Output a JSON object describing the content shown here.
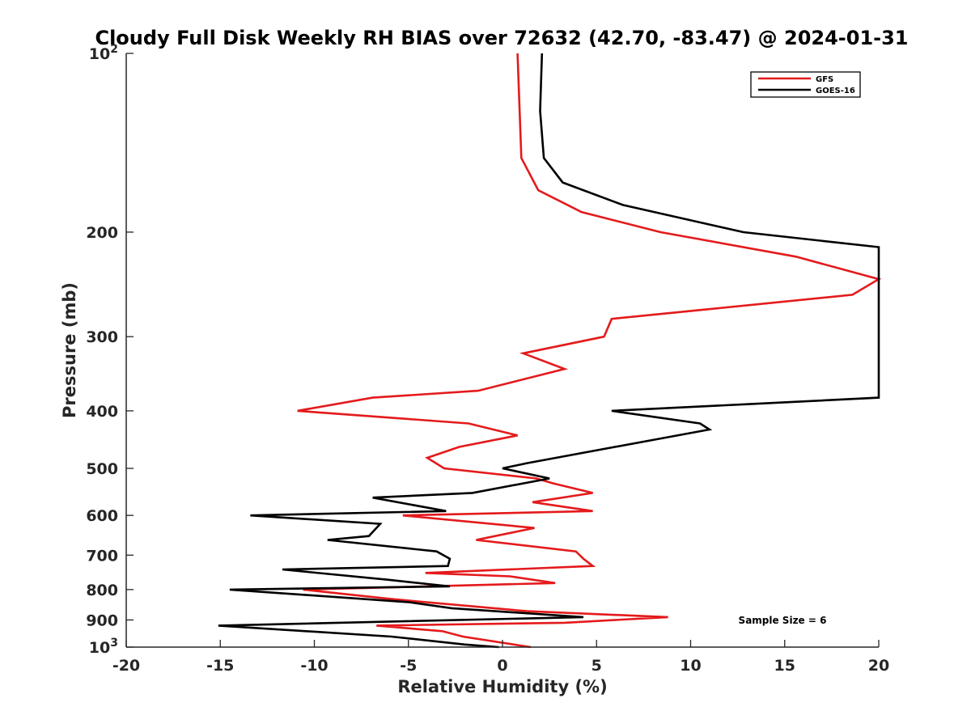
{
  "chart_data": {
    "type": "line",
    "title": "Cloudy Full Disk Weekly RH BIAS over 72632 (42.70, -83.47) @ 2024-01-31",
    "xlabel": "Relative Humidity (%)",
    "ylabel": "Pressure (mb)",
    "xlim": [
      -20,
      20
    ],
    "ylim": [
      100,
      1000
    ],
    "y_scale": "log",
    "y_reversed": true,
    "grid": false,
    "legend_position": "top-right",
    "x_ticks": [
      -20,
      -15,
      -10,
      -5,
      0,
      5,
      10,
      15,
      20
    ],
    "x_tick_labels": [
      "-20",
      "-15",
      "-10",
      "-5",
      "0",
      "5",
      "10",
      "15",
      "20"
    ],
    "y_ticks": [
      100,
      200,
      300,
      400,
      500,
      600,
      700,
      800,
      900,
      1000
    ],
    "y_tick_labels": [
      {
        "base": "10",
        "exp": "2"
      },
      {
        "text": "200"
      },
      {
        "text": "300"
      },
      {
        "text": "400"
      },
      {
        "text": "500"
      },
      {
        "text": "600"
      },
      {
        "text": "700"
      },
      {
        "text": "800"
      },
      {
        "text": "900"
      },
      {
        "base": "10",
        "exp": "3"
      }
    ],
    "annotation": "Sample Size = 6",
    "series": [
      {
        "name": "GFS",
        "color": "#e41a1c",
        "points": [
          [
            0.8,
            100
          ],
          [
            1.0,
            150
          ],
          [
            1.9,
            170
          ],
          [
            4.2,
            185
          ],
          [
            8.4,
            200
          ],
          [
            15.6,
            220
          ],
          [
            20,
            240
          ],
          [
            18.6,
            255
          ],
          [
            5.8,
            280
          ],
          [
            5.4,
            300
          ],
          [
            1.1,
            320
          ],
          [
            3.3,
            340
          ],
          [
            -1.3,
            370
          ],
          [
            -6.9,
            380
          ],
          [
            -10.9,
            400
          ],
          [
            -1.8,
            420
          ],
          [
            0.8,
            440
          ],
          [
            -2.3,
            460
          ],
          [
            -4.0,
            480
          ],
          [
            -3.1,
            500
          ],
          [
            1.8,
            520
          ],
          [
            2.7,
            530
          ],
          [
            4.8,
            550
          ],
          [
            1.6,
            570
          ],
          [
            4.8,
            590
          ],
          [
            -5.3,
            600
          ],
          [
            1.7,
            630
          ],
          [
            -1.4,
            660
          ],
          [
            3.9,
            690
          ],
          [
            4.3,
            710
          ],
          [
            4.8,
            730
          ],
          [
            -4.1,
            750
          ],
          [
            0.4,
            760
          ],
          [
            2.8,
            780
          ],
          [
            -10.6,
            800
          ],
          [
            -5.9,
            830
          ],
          [
            1.3,
            870
          ],
          [
            8.8,
            890
          ],
          [
            3.3,
            910
          ],
          [
            -6.7,
            920
          ],
          [
            -3.2,
            940
          ],
          [
            -2.1,
            960
          ],
          [
            1.5,
            1000
          ]
        ]
      },
      {
        "name": "GOES-16",
        "color": "#000000",
        "points": [
          [
            2.1,
            100
          ],
          [
            2.0,
            125
          ],
          [
            2.2,
            150
          ],
          [
            3.2,
            165
          ],
          [
            6.4,
            180
          ],
          [
            12.8,
            200
          ],
          [
            20,
            212
          ],
          [
            20,
            380
          ],
          [
            12.9,
            390
          ],
          [
            5.8,
            400
          ],
          [
            10.5,
            420
          ],
          [
            11.0,
            430
          ],
          [
            1.3,
            490
          ],
          [
            0,
            500
          ],
          [
            2.5,
            520
          ],
          [
            -1.6,
            550
          ],
          [
            -6.9,
            560
          ],
          [
            -3.0,
            590
          ],
          [
            -13.4,
            600
          ],
          [
            -6.5,
            620
          ],
          [
            -7.1,
            650
          ],
          [
            -9.3,
            660
          ],
          [
            -3.5,
            690
          ],
          [
            -2.8,
            710
          ],
          [
            -2.9,
            730
          ],
          [
            -11.7,
            740
          ],
          [
            -6.1,
            770
          ],
          [
            -2.8,
            790
          ],
          [
            -14.5,
            800
          ],
          [
            -5.0,
            840
          ],
          [
            -2.7,
            860
          ],
          [
            4.3,
            890
          ],
          [
            -15.1,
            920
          ],
          [
            -5.9,
            960
          ],
          [
            -2.0,
            990
          ],
          [
            -0.2,
            1000
          ]
        ]
      }
    ]
  }
}
